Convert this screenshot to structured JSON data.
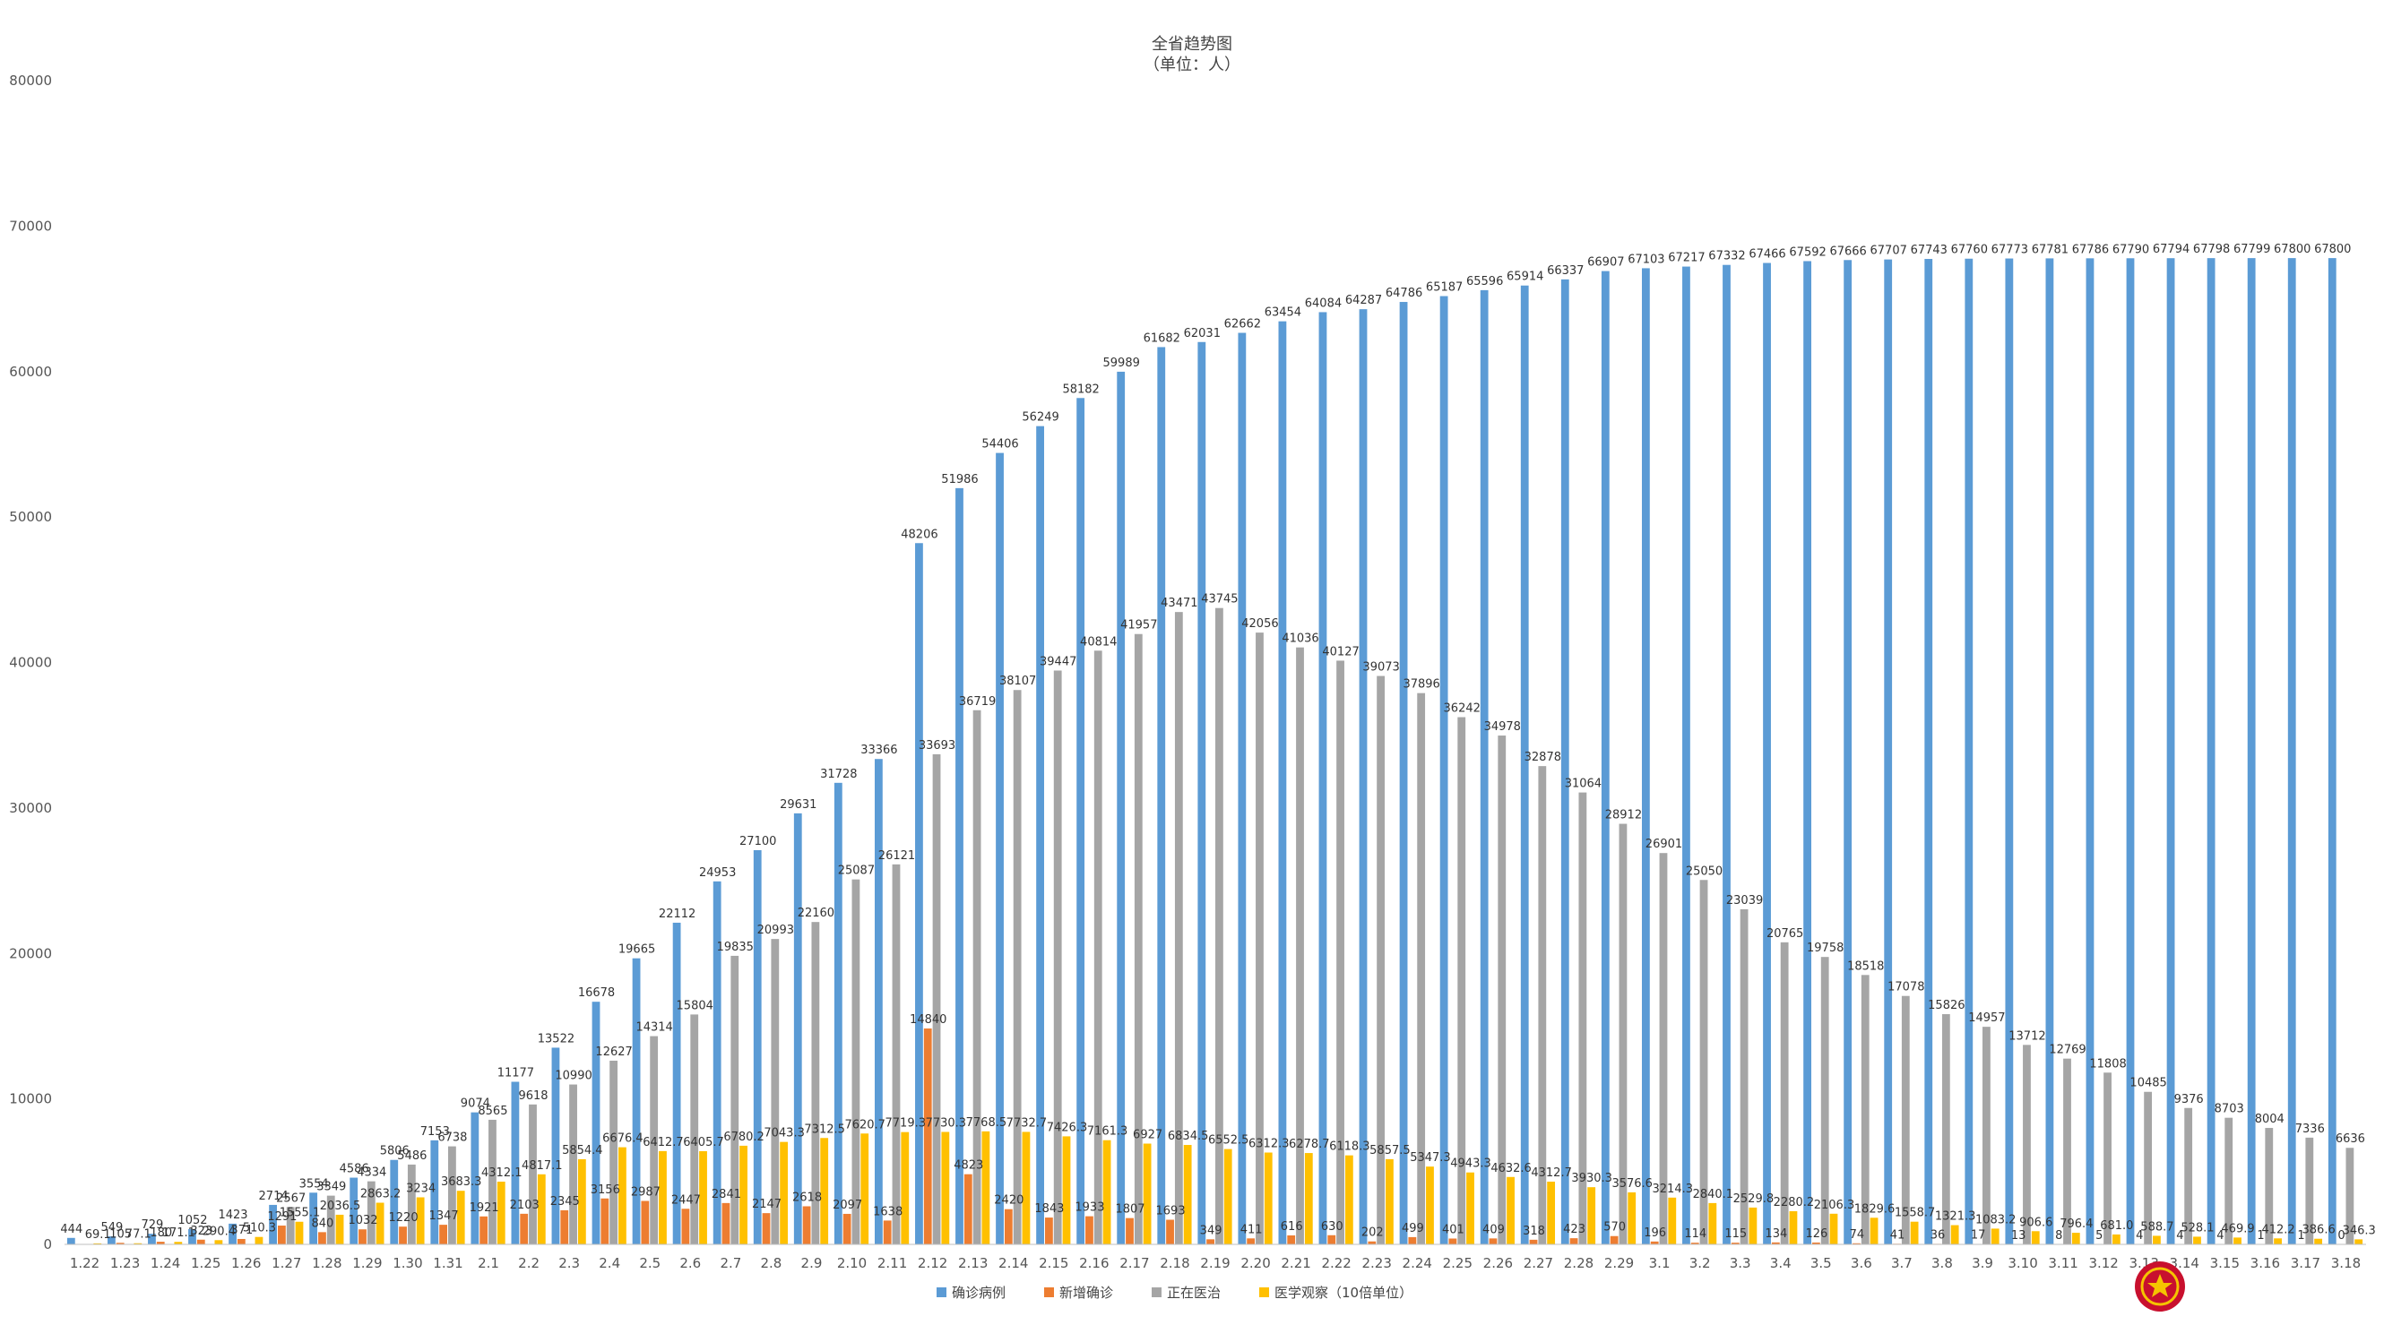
{
  "chart_data": {
    "type": "bar",
    "title": "全省趋势图",
    "subtitle": "（单位：人）",
    "ylim": [
      0,
      80000
    ],
    "yticks": [
      0,
      10000,
      20000,
      30000,
      40000,
      50000,
      60000,
      70000,
      80000
    ],
    "grid": false,
    "legend_position": "bottom",
    "categories": [
      "1.22",
      "1.23",
      "1.24",
      "1.25",
      "1.26",
      "1.27",
      "1.28",
      "1.29",
      "1.30",
      "1.31",
      "2.1",
      "2.2",
      "2.3",
      "2.4",
      "2.5",
      "2.6",
      "2.7",
      "2.8",
      "2.9",
      "2.10",
      "2.11",
      "2.12",
      "2.13",
      "2.14",
      "2.15",
      "2.16",
      "2.17",
      "2.18",
      "2.19",
      "2.20",
      "2.21",
      "2.22",
      "2.23",
      "2.24",
      "2.25",
      "2.26",
      "2.27",
      "2.28",
      "2.29",
      "3.1",
      "3.2",
      "3.3",
      "3.4",
      "3.5",
      "3.6",
      "3.7",
      "3.8",
      "3.9",
      "3.10",
      "3.11",
      "3.12",
      "3.13",
      "3.14",
      "3.15",
      "3.16",
      "3.17",
      "3.18"
    ],
    "series": [
      {
        "name": "确诊病例",
        "color": "#5b9bd5",
        "values": [
          444,
          549,
          729,
          1052,
          1423,
          2714,
          3554,
          4586,
          5806,
          7153,
          9074,
          11177,
          13522,
          16678,
          19665,
          22112,
          24953,
          27100,
          29631,
          31728,
          33366,
          48206,
          51986,
          54406,
          56249,
          58182,
          59989,
          61682,
          62031,
          62662,
          63454,
          64084,
          64287,
          64786,
          65187,
          65596,
          65914,
          66337,
          66907,
          67103,
          67217,
          67332,
          67466,
          67592,
          67666,
          67707,
          67743,
          67760,
          67773,
          67781,
          67786,
          67790,
          67794,
          67798,
          67799,
          67800,
          67800
        ]
      },
      {
        "name": "新增确诊",
        "color": "#ed7d31",
        "values": [
          0,
          105,
          180,
          323,
          371,
          1291,
          840,
          1032,
          1220,
          1347,
          1921,
          2103,
          2345,
          3156,
          2987,
          2447,
          2841,
          2147,
          2618,
          2097,
          1638,
          14840,
          4823,
          2420,
          1843,
          1933,
          1807,
          1693,
          349,
          411,
          616,
          630,
          202,
          499,
          401,
          409,
          318,
          423,
          570,
          196,
          114,
          115,
          134,
          126,
          74,
          41,
          36,
          17,
          13,
          8,
          5,
          4,
          4,
          4,
          1,
          1,
          0
        ]
      },
      {
        "name": "正在医治",
        "color": "#a5a5a5",
        "values": [
          0,
          0,
          0,
          0,
          0,
          2567,
          3349,
          4334,
          5486,
          6738,
          8565,
          9618,
          10990,
          12627,
          14314,
          15804,
          19835,
          20993,
          22160,
          25087,
          26121,
          33693,
          36719,
          38107,
          39447,
          40814,
          41957,
          43471,
          43745,
          42056,
          41036,
          40127,
          39073,
          37896,
          36242,
          34978,
          32878,
          31064,
          28912,
          26901,
          25050,
          23039,
          20765,
          19758,
          18518,
          17078,
          15826,
          14957,
          13712,
          12769,
          11808,
          10485,
          9376,
          8703,
          8004,
          7336,
          6636
        ]
      },
      {
        "name": "医学观察（10倍单位）",
        "color": "#ffc000",
        "values": [
          69.1,
          77.1,
          171.1,
          290.4,
          510.3,
          1555.1,
          2036.5,
          2863.2,
          3234,
          3683.3,
          4312.1,
          4817.1,
          5854.4,
          6676.4,
          6412.7,
          6405.7,
          6780.2,
          7043.3,
          7312.5,
          7620.7,
          7719.3,
          7730.3,
          7768.5,
          7732.7,
          7426.3,
          7161.3,
          6927,
          6834.5,
          6552.5,
          6312.3,
          6278.7,
          6118.3,
          5857.5,
          5347.3,
          4943.3,
          4632.6,
          4312.7,
          3930.3,
          3576.6,
          3214.3,
          2840.1,
          2529.8,
          2280.2,
          2106.3,
          1829.6,
          1558.7,
          1321.3,
          1083.2,
          906.6,
          796.4,
          681.0,
          588.7,
          528.1,
          469.9,
          412.2,
          386.6,
          346.3
        ]
      }
    ],
    "data_labels": {
      "确诊病例": [
        "444",
        "549",
        "729",
        "1052",
        "1423",
        "2714",
        "3554",
        "4586",
        "5806",
        "7153",
        "9074",
        "11177",
        "13522",
        "16678",
        "19665",
        "22112",
        "24953",
        "27100",
        "29631",
        "31728",
        "33366",
        "48206",
        "51986",
        "54406",
        "56249",
        "58182",
        "59989",
        "61682",
        "62031",
        "62662",
        "63454",
        "64084",
        "64287",
        "64786",
        "65187",
        "65596",
        "65914",
        "66337",
        "66907",
        "67103",
        "67217",
        "67332",
        "67466",
        "67592",
        "67666",
        "67707",
        "67743",
        "67760",
        "67773",
        "67781",
        "67786",
        "67790",
        "67794",
        "67798",
        "67799",
        "67800",
        "67800"
      ],
      "新增确诊": [
        "",
        "105",
        "180",
        "323",
        "371",
        "1291",
        "840",
        "1032",
        "1220",
        "1347",
        "1921",
        "2103",
        "2345",
        "3156",
        "2987",
        "2447",
        "2841",
        "2147",
        "2618",
        "2097",
        "1638",
        "14840",
        "4823",
        "2420",
        "1843",
        "1933",
        "1807",
        "1693",
        "349",
        "411",
        "616",
        "630",
        "202",
        "499",
        "401",
        "409",
        "318",
        "423",
        "570",
        "196",
        "114",
        "115",
        "134",
        "126",
        "74",
        "41",
        "36",
        "17",
        "13",
        "8",
        "5",
        "4",
        "4",
        "4",
        "1",
        "1",
        "0"
      ],
      "正在医治": [
        "",
        "",
        "",
        "",
        "",
        "2567",
        "3349",
        "4334",
        "5486",
        "6738",
        "8565",
        "9618",
        "10990",
        "12627",
        "14314",
        "15804",
        "19835",
        "20993",
        "22160",
        "25087",
        "26121",
        "33693",
        "36719",
        "38107",
        "39447",
        "40814",
        "41957",
        "43471",
        "43745",
        "42056",
        "41036",
        "40127",
        "39073",
        "37896",
        "36242",
        "34978",
        "32878",
        "31064",
        "28912",
        "26901",
        "25050",
        "23039",
        "20765",
        "19758",
        "18518",
        "17078",
        "15826",
        "14957",
        "13712",
        "12769",
        "11808",
        "10485",
        "9376",
        "8703",
        "8004",
        "7336",
        "6636"
      ],
      "医学观察（10倍单位）": [
        "69.1",
        "77.1",
        "171.1",
        "290.4",
        "510.3",
        "1555.1",
        "2036.5",
        "2863.2",
        "3234",
        "3683.3",
        "4312.1",
        "4817.1",
        "5854.4",
        "6676.4",
        "6412.7",
        "6405.7",
        "6780.2",
        "7043.3",
        "7312.5",
        "7620.7",
        "7719.3",
        "7730.3",
        "7768.5",
        "7732.7",
        "7426.3",
        "7161.3",
        "6927",
        "6834.5",
        "6552.5",
        "6312.3",
        "6278.7",
        "6118.3",
        "5857.5",
        "5347.3",
        "4943.3",
        "4632.6",
        "4312.7",
        "3930.3",
        "3576.6",
        "3214.3",
        "2840.1",
        "2529.8",
        "2280.2",
        "2106.3",
        "1829.6",
        "1558.7",
        "1321.3",
        "1083.2",
        "906.6",
        "796.4",
        "681.0",
        "588.7",
        "528.1",
        "469.9",
        "412.2",
        "386.6",
        "346.3"
      ]
    }
  },
  "emblem_icon": "national-emblem-icon"
}
